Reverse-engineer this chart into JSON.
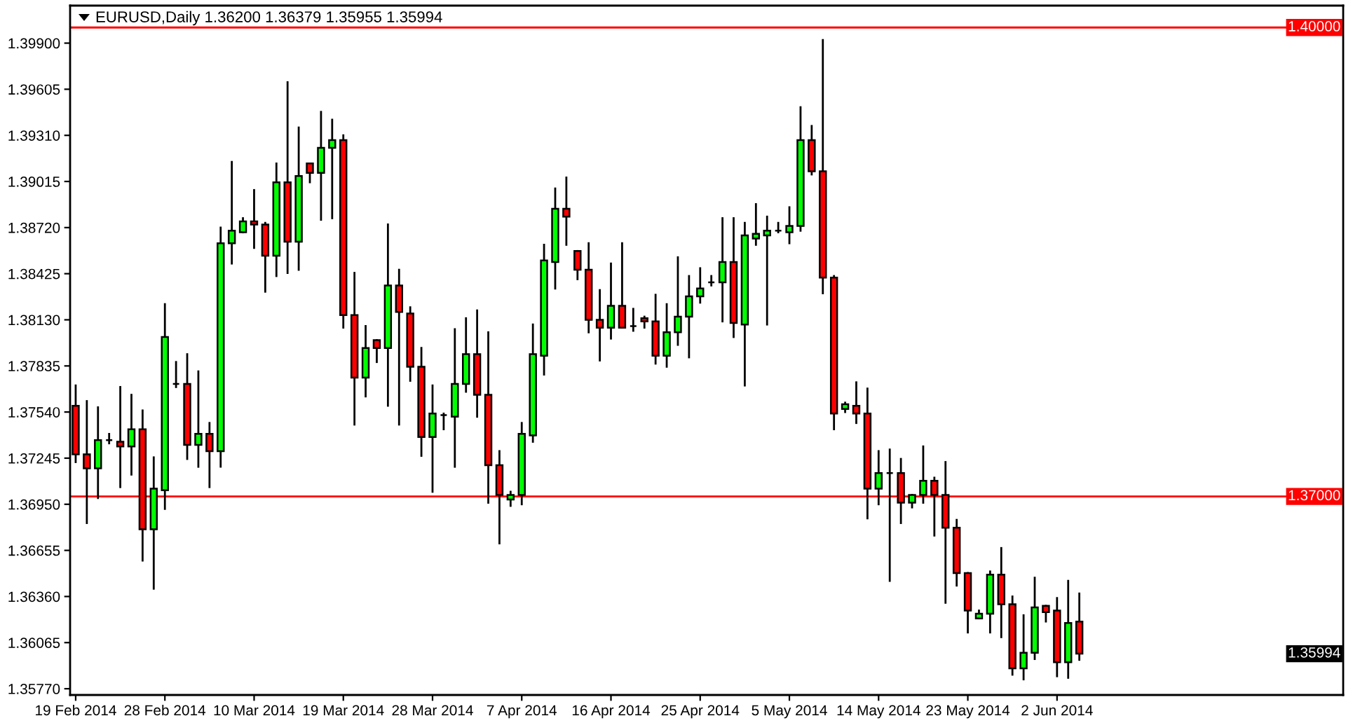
{
  "chart_data": {
    "type": "candlestick",
    "title": "EURUSD,Daily 1.36200 1.36379 1.35955 1.35994",
    "categories": [
      "19 Feb 2014",
      null,
      null,
      null,
      null,
      null,
      null,
      null,
      "28 Feb 2014",
      null,
      null,
      null,
      null,
      null,
      null,
      null,
      "10 Mar 2014",
      null,
      null,
      null,
      null,
      null,
      null,
      null,
      "19 Mar 2014",
      null,
      null,
      null,
      null,
      null,
      null,
      null,
      "28 Mar 2014",
      null,
      null,
      null,
      null,
      null,
      null,
      null,
      "7 Apr 2014",
      null,
      null,
      null,
      null,
      null,
      null,
      null,
      "16 Apr 2014",
      null,
      null,
      null,
      null,
      null,
      null,
      null,
      "25 Apr 2014",
      null,
      null,
      null,
      null,
      null,
      null,
      null,
      "5 May 2014",
      null,
      null,
      null,
      null,
      null,
      null,
      null,
      "14 May 2014",
      null,
      null,
      null,
      null,
      null,
      null,
      null,
      "23 May 2014",
      null,
      null,
      null,
      null,
      null,
      null,
      null,
      "2 Jun 2014",
      null,
      null
    ],
    "ohlc": [
      [
        1.3758,
        1.3771,
        1.3722,
        1.3727
      ],
      [
        1.3727,
        1.3761,
        1.3683,
        1.3718
      ],
      [
        1.3718,
        1.3757,
        1.3699,
        1.3736
      ],
      [
        1.3736,
        1.374,
        1.3734,
        1.3736
      ],
      [
        1.3735,
        1.377,
        1.3706,
        1.3732
      ],
      [
        1.3732,
        1.3765,
        1.3714,
        1.3743
      ],
      [
        1.3743,
        1.3755,
        1.3659,
        1.3679
      ],
      [
        1.3679,
        1.3725,
        1.3641,
        1.3705
      ],
      [
        1.3704,
        1.3823,
        1.3692,
        1.3802
      ],
      [
        1.3772,
        1.3786,
        1.377,
        1.3772
      ],
      [
        1.3772,
        1.3791,
        1.3724,
        1.3733
      ],
      [
        1.3733,
        1.378,
        1.3719,
        1.374
      ],
      [
        1.374,
        1.3747,
        1.3706,
        1.3729
      ],
      [
        1.3729,
        1.3872,
        1.3719,
        1.3862
      ],
      [
        1.3862,
        1.3914,
        1.3849,
        1.387
      ],
      [
        1.3869,
        1.3878,
        1.3869,
        1.3876
      ],
      [
        1.3876,
        1.3896,
        1.3859,
        1.3874
      ],
      [
        1.3874,
        1.3875,
        1.3831,
        1.3854
      ],
      [
        1.3854,
        1.3913,
        1.3841,
        1.3901
      ],
      [
        1.3901,
        1.3965,
        1.3843,
        1.3863
      ],
      [
        1.3863,
        1.3936,
        1.3845,
        1.3905
      ],
      [
        1.3913,
        1.3913,
        1.3901,
        1.3907
      ],
      [
        1.3907,
        1.3946,
        1.3877,
        1.3923
      ],
      [
        1.3923,
        1.3941,
        1.3878,
        1.3928
      ],
      [
        1.3928,
        1.3931,
        1.3808,
        1.3816
      ],
      [
        1.3816,
        1.3843,
        1.3746,
        1.3776
      ],
      [
        1.3776,
        1.3809,
        1.3764,
        1.3795
      ],
      [
        1.38,
        1.38,
        1.3786,
        1.3795
      ],
      [
        1.3795,
        1.3874,
        1.3758,
        1.3835
      ],
      [
        1.3835,
        1.3845,
        1.3746,
        1.3818
      ],
      [
        1.3817,
        1.3821,
        1.3774,
        1.3783
      ],
      [
        1.3783,
        1.3795,
        1.3726,
        1.3738
      ],
      [
        1.3738,
        1.3771,
        1.3703,
        1.3753
      ],
      [
        1.3752,
        1.3753,
        1.3743,
        1.3752
      ],
      [
        1.3751,
        1.3807,
        1.3719,
        1.3772
      ],
      [
        1.3772,
        1.3814,
        1.3767,
        1.3791
      ],
      [
        1.3791,
        1.3819,
        1.3751,
        1.3765
      ],
      [
        1.3765,
        1.3805,
        1.3696,
        1.372
      ],
      [
        1.372,
        1.3729,
        1.367,
        1.3701
      ],
      [
        1.3698,
        1.3703,
        1.3694,
        1.3701
      ],
      [
        1.3701,
        1.3747,
        1.3695,
        1.374
      ],
      [
        1.3739,
        1.381,
        1.3735,
        1.3791
      ],
      [
        1.379,
        1.3861,
        1.3778,
        1.3851
      ],
      [
        1.385,
        1.3897,
        1.3833,
        1.3884
      ],
      [
        1.3884,
        1.3904,
        1.3861,
        1.3879
      ],
      [
        1.3857,
        1.3857,
        1.3839,
        1.3845
      ],
      [
        1.3845,
        1.3862,
        1.3805,
        1.3813
      ],
      [
        1.3813,
        1.3832,
        1.3787,
        1.3808
      ],
      [
        1.3808,
        1.3849,
        1.3801,
        1.3822
      ],
      [
        1.3822,
        1.3862,
        1.3808,
        1.3808
      ],
      [
        1.3809,
        1.382,
        1.3806,
        1.3809
      ],
      [
        1.3814,
        1.3815,
        1.3808,
        1.3812
      ],
      [
        1.3812,
        1.3829,
        1.3785,
        1.379
      ],
      [
        1.379,
        1.3823,
        1.3783,
        1.3805
      ],
      [
        1.3805,
        1.3853,
        1.3797,
        1.3815
      ],
      [
        1.3815,
        1.3841,
        1.3789,
        1.3828
      ],
      [
        1.3828,
        1.3846,
        1.3824,
        1.3833
      ],
      [
        1.3837,
        1.3841,
        1.3835,
        1.3837
      ],
      [
        1.3837,
        1.3878,
        1.3812,
        1.385
      ],
      [
        1.385,
        1.3878,
        1.3802,
        1.3811
      ],
      [
        1.381,
        1.3875,
        1.3771,
        1.3867
      ],
      [
        1.3865,
        1.3887,
        1.3861,
        1.3868
      ],
      [
        1.3867,
        1.3879,
        1.381,
        1.387
      ],
      [
        1.387,
        1.3875,
        1.3869,
        1.387
      ],
      [
        1.3869,
        1.3885,
        1.3862,
        1.3873
      ],
      [
        1.3873,
        1.3949,
        1.387,
        1.3928
      ],
      [
        1.3928,
        1.3937,
        1.3906,
        1.3908
      ],
      [
        1.3908,
        1.3992,
        1.383,
        1.384
      ],
      [
        1.384,
        1.3841,
        1.3743,
        1.3753
      ],
      [
        1.3756,
        1.376,
        1.3754,
        1.3759
      ],
      [
        1.3758,
        1.3773,
        1.3747,
        1.3753
      ],
      [
        1.3753,
        1.3769,
        1.3686,
        1.3705
      ],
      [
        1.3705,
        1.3729,
        1.3695,
        1.3715
      ],
      [
        1.3715,
        1.373,
        1.3646,
        1.3715
      ],
      [
        1.3715,
        1.3724,
        1.3683,
        1.3696
      ],
      [
        1.3696,
        1.3701,
        1.3693,
        1.3701
      ],
      [
        1.3701,
        1.3732,
        1.3696,
        1.371
      ],
      [
        1.371,
        1.3712,
        1.3675,
        1.3701
      ],
      [
        1.3701,
        1.3722,
        1.3632,
        1.368
      ],
      [
        1.368,
        1.3685,
        1.3643,
        1.3651
      ],
      [
        1.3651,
        1.3651,
        1.3613,
        1.3627
      ],
      [
        1.3622,
        1.3627,
        1.3622,
        1.3625
      ],
      [
        1.3625,
        1.3652,
        1.3613,
        1.365
      ],
      [
        1.365,
        1.3667,
        1.361,
        1.3631
      ],
      [
        1.3631,
        1.3636,
        1.3586,
        1.359
      ],
      [
        1.359,
        1.3624,
        1.3583,
        1.36
      ],
      [
        1.36,
        1.3648,
        1.3596,
        1.3629
      ],
      [
        1.363,
        1.363,
        1.362,
        1.3626
      ],
      [
        1.3627,
        1.3635,
        1.3585,
        1.3594
      ],
      [
        1.3594,
        1.3646,
        1.3584,
        1.3619
      ],
      [
        1.362,
        1.36379,
        1.35955,
        1.35994
      ]
    ],
    "colors": [
      "#ff0000",
      "#ff0000",
      "#00ff00",
      "#000000",
      "#ff0000",
      "#00ff00",
      "#ff0000",
      "#00ff00",
      "#00ff00",
      "#000000",
      "#ff0000",
      "#00ff00",
      "#ff0000",
      "#00ff00",
      "#00ff00",
      "#00ff00",
      "#ff0000",
      "#ff0000",
      "#00ff00",
      "#ff0000",
      "#00ff00",
      "#ff0000",
      "#00ff00",
      "#00ff00",
      "#ff0000",
      "#ff0000",
      "#00ff00",
      "#ff0000",
      "#00ff00",
      "#ff0000",
      "#ff0000",
      "#ff0000",
      "#00ff00",
      "#000000",
      "#00ff00",
      "#00ff00",
      "#ff0000",
      "#ff0000",
      "#ff0000",
      "#00ff00",
      "#00ff00",
      "#00ff00",
      "#00ff00",
      "#00ff00",
      "#ff0000",
      "#ff0000",
      "#ff0000",
      "#ff0000",
      "#00ff00",
      "#ff0000",
      "#000000",
      "#ff0000",
      "#ff0000",
      "#00ff00",
      "#00ff00",
      "#00ff00",
      "#00ff00",
      "#000000",
      "#00ff00",
      "#ff0000",
      "#00ff00",
      "#00ff00",
      "#00ff00",
      "#000000",
      "#00ff00",
      "#00ff00",
      "#ff0000",
      "#ff0000",
      "#ff0000",
      "#00ff00",
      "#ff0000",
      "#ff0000",
      "#00ff00",
      "#000000",
      "#ff0000",
      "#00ff00",
      "#00ff00",
      "#ff0000",
      "#ff0000",
      "#ff0000",
      "#ff0000",
      "#00ff00",
      "#00ff00",
      "#ff0000",
      "#ff0000",
      "#00ff00",
      "#00ff00",
      "#ff0000",
      "#ff0000",
      "#00ff00",
      "#ff0000"
    ],
    "ylim": [
      1.3573,
      1.4014
    ],
    "yticks": [
      {
        "value": 1.399,
        "label": "1.39900"
      },
      {
        "value": 1.39605,
        "label": "1.39605"
      },
      {
        "value": 1.3931,
        "label": "1.39310"
      },
      {
        "value": 1.39015,
        "label": "1.39015"
      },
      {
        "value": 1.3872,
        "label": "1.38720"
      },
      {
        "value": 1.38425,
        "label": "1.38425"
      },
      {
        "value": 1.3813,
        "label": "1.38130"
      },
      {
        "value": 1.37835,
        "label": "1.37835"
      },
      {
        "value": 1.3754,
        "label": "1.37540"
      },
      {
        "value": 1.37245,
        "label": "1.37245"
      },
      {
        "value": 1.3695,
        "label": "1.36950"
      },
      {
        "value": 1.36655,
        "label": "1.36655"
      },
      {
        "value": 1.3636,
        "label": "1.36360"
      },
      {
        "value": 1.36065,
        "label": "1.36065"
      },
      {
        "value": 1.3577,
        "label": "1.35770"
      }
    ],
    "ref_lines": [
      {
        "axis": "y",
        "value": 1.4,
        "label": "1.40000",
        "color": "#ff0000"
      },
      {
        "axis": "y",
        "value": 1.37,
        "label": "1.37000",
        "color": "#ff0000"
      }
    ],
    "annotations": [
      "1.35994"
    ]
  }
}
